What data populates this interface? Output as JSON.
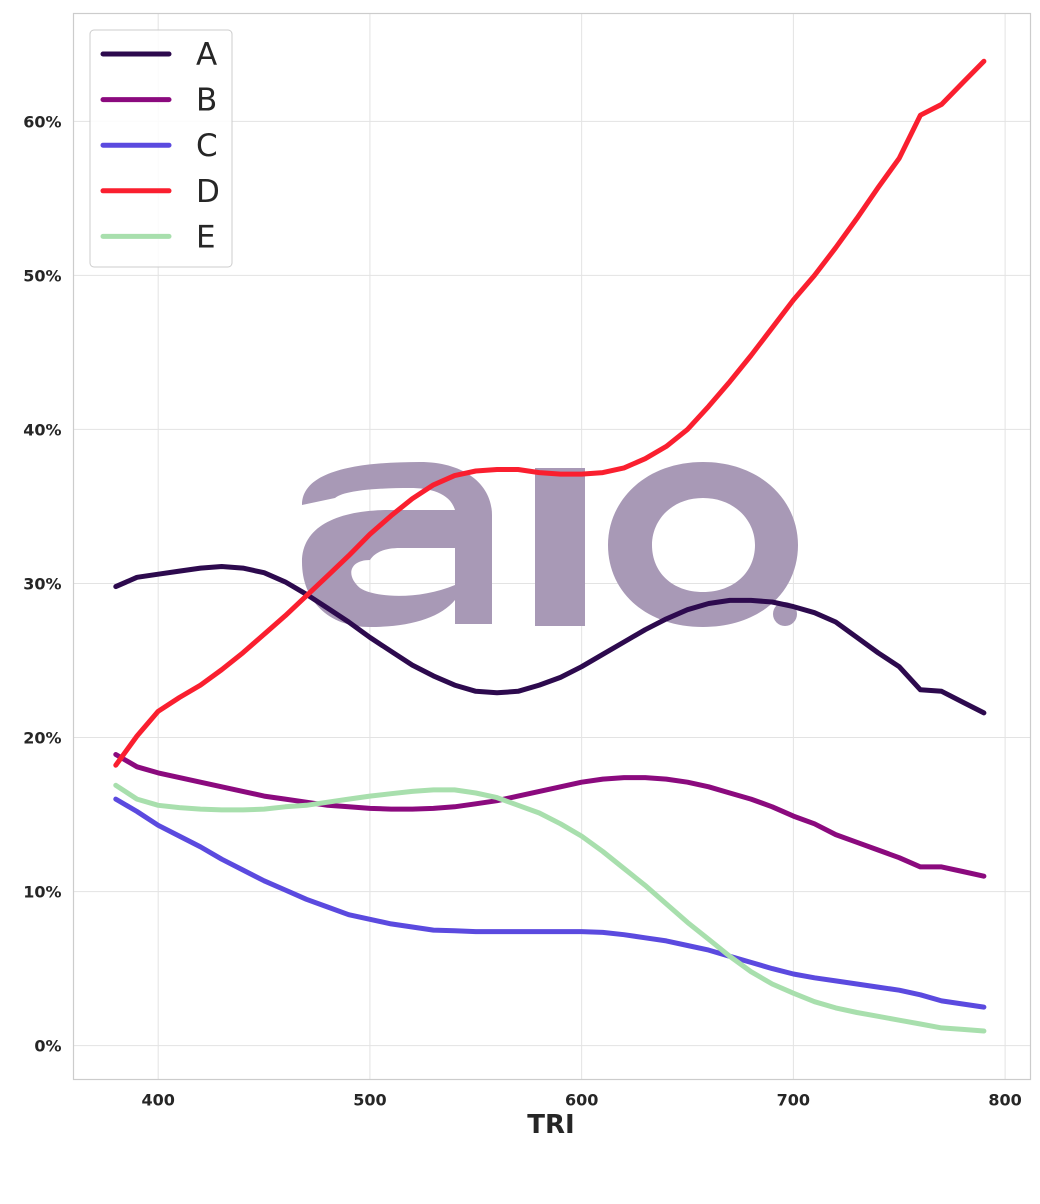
{
  "chart_data": {
    "type": "line",
    "xlabel": "TRI",
    "ylabel": "",
    "xlim": [
      360,
      812
    ],
    "ylim": [
      -2.2,
      67.0
    ],
    "xticks": [
      400,
      500,
      600,
      700,
      800
    ],
    "xtick_labels": [
      "400",
      "500",
      "600",
      "700",
      "800"
    ],
    "yticks": [
      0,
      10,
      20,
      30,
      40,
      50,
      60
    ],
    "ytick_labels": [
      "0%",
      "10%",
      "20%",
      "30%",
      "40%",
      "50%",
      "60%"
    ],
    "grid": true,
    "legend_position": "top-left",
    "x": [
      380,
      390,
      400,
      410,
      420,
      430,
      440,
      450,
      460,
      470,
      480,
      490,
      500,
      510,
      520,
      530,
      540,
      550,
      560,
      570,
      580,
      590,
      600,
      610,
      620,
      630,
      640,
      650,
      660,
      670,
      680,
      690,
      700,
      710,
      720,
      730,
      740,
      750,
      760,
      770,
      780,
      790
    ],
    "series": [
      {
        "name": "A",
        "color": "#2d0a4e",
        "values": [
          29.8,
          30.4,
          30.6,
          30.8,
          31.0,
          31.1,
          31.0,
          30.7,
          30.1,
          29.3,
          28.4,
          27.5,
          26.5,
          25.6,
          24.7,
          24.0,
          23.4,
          23.0,
          22.9,
          23.0,
          23.4,
          23.9,
          24.6,
          25.4,
          26.2,
          27.0,
          27.7,
          28.3,
          28.7,
          28.9,
          28.9,
          28.8,
          28.5,
          28.1,
          27.5,
          26.5,
          25.5,
          24.6,
          23.1,
          23.0,
          22.3,
          21.6
        ]
      },
      {
        "name": "B",
        "color": "#8b0a7e",
        "values": [
          18.9,
          18.1,
          17.7,
          17.4,
          17.1,
          16.8,
          16.5,
          16.2,
          16.0,
          15.8,
          15.6,
          15.5,
          15.4,
          15.35,
          15.35,
          15.4,
          15.5,
          15.7,
          15.9,
          16.2,
          16.5,
          16.8,
          17.1,
          17.3,
          17.4,
          17.4,
          17.3,
          17.1,
          16.8,
          16.4,
          16.0,
          15.5,
          14.9,
          14.4,
          13.7,
          13.2,
          12.7,
          12.2,
          11.6,
          11.6,
          11.3,
          11.0
        ]
      },
      {
        "name": "C",
        "color": "#5b4adf",
        "values": [
          16.0,
          15.2,
          14.3,
          13.6,
          12.9,
          12.1,
          11.4,
          10.7,
          10.1,
          9.5,
          9.0,
          8.5,
          8.2,
          7.9,
          7.7,
          7.5,
          7.45,
          7.4,
          7.4,
          7.4,
          7.4,
          7.4,
          7.4,
          7.35,
          7.2,
          7.0,
          6.8,
          6.5,
          6.2,
          5.8,
          5.4,
          5.0,
          4.65,
          4.4,
          4.2,
          4.0,
          3.8,
          3.6,
          3.3,
          2.9,
          2.7,
          2.5
        ]
      },
      {
        "name": "D",
        "color": "#fa1f2f",
        "values": [
          18.2,
          20.1,
          21.7,
          22.6,
          23.4,
          24.4,
          25.5,
          26.7,
          27.9,
          29.2,
          30.5,
          31.8,
          33.2,
          34.4,
          35.5,
          36.4,
          37.0,
          37.3,
          37.4,
          37.4,
          37.2,
          37.1,
          37.1,
          37.2,
          37.5,
          38.1,
          38.9,
          40.0,
          41.5,
          43.1,
          44.8,
          46.6,
          48.4,
          50.0,
          51.8,
          53.7,
          55.7,
          57.6,
          60.4,
          61.1,
          62.5,
          63.9
        ]
      },
      {
        "name": "E",
        "color": "#a8dfad",
        "values": [
          16.9,
          16.0,
          15.6,
          15.45,
          15.35,
          15.3,
          15.3,
          15.35,
          15.5,
          15.6,
          15.8,
          16.0,
          16.2,
          16.35,
          16.5,
          16.6,
          16.6,
          16.4,
          16.1,
          15.6,
          15.1,
          14.4,
          13.6,
          12.6,
          11.5,
          10.4,
          9.2,
          8.0,
          6.9,
          5.8,
          4.8,
          4.0,
          3.4,
          2.85,
          2.45,
          2.15,
          1.9,
          1.65,
          1.4,
          1.15,
          1.05,
          0.95
        ]
      }
    ]
  }
}
